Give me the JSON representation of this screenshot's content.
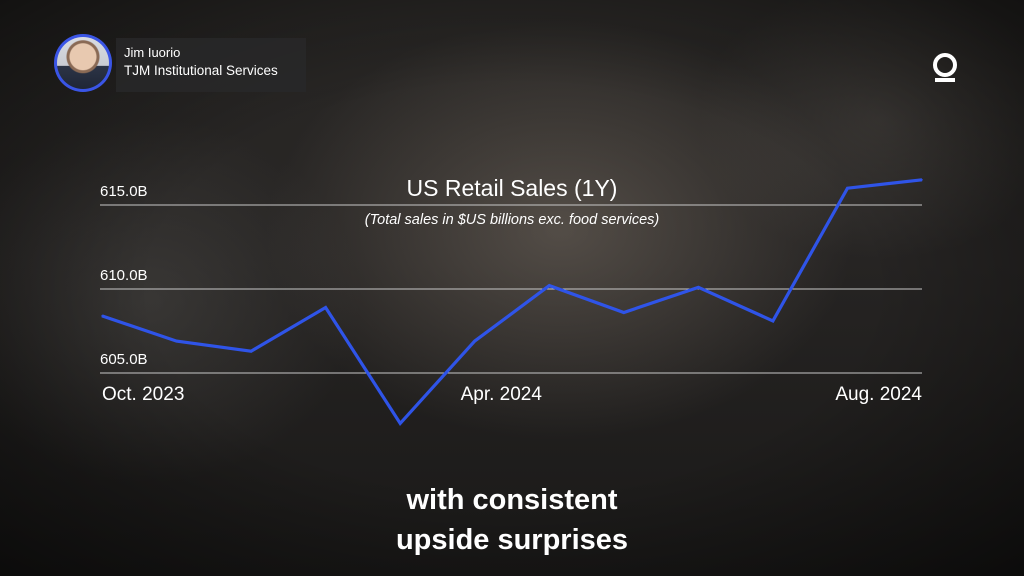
{
  "speaker": {
    "name": "Jim Iuorio",
    "organization": "TJM Institutional Services"
  },
  "logo_icon": "q-brand-logo-icon",
  "caption": {
    "line1": "with consistent",
    "line2": "upside surprises"
  },
  "colors": {
    "line": "#2f54e8",
    "avatar_ring": "#3a55e6",
    "text": "#ffffff",
    "gridline": "#c8c8c8"
  },
  "chart_data": {
    "type": "line",
    "title": "US Retail Sales (1Y)",
    "subtitle": "(Total sales in $US billions exc. food services)",
    "y_tick_labels": [
      "605.0B",
      "610.0B",
      "615.0B"
    ],
    "y_ticks": [
      605,
      610,
      615
    ],
    "x_tick_labels": [
      "Oct. 2023",
      "Apr. 2024",
      "Aug. 2024"
    ],
    "ylim": [
      605,
      615
    ],
    "grid": true,
    "series": [
      {
        "values": [
          608.4,
          606.9,
          606.3,
          608.9,
          602.0,
          606.9,
          610.2,
          608.6,
          610.1,
          608.1,
          616.0,
          616.5
        ]
      }
    ]
  }
}
